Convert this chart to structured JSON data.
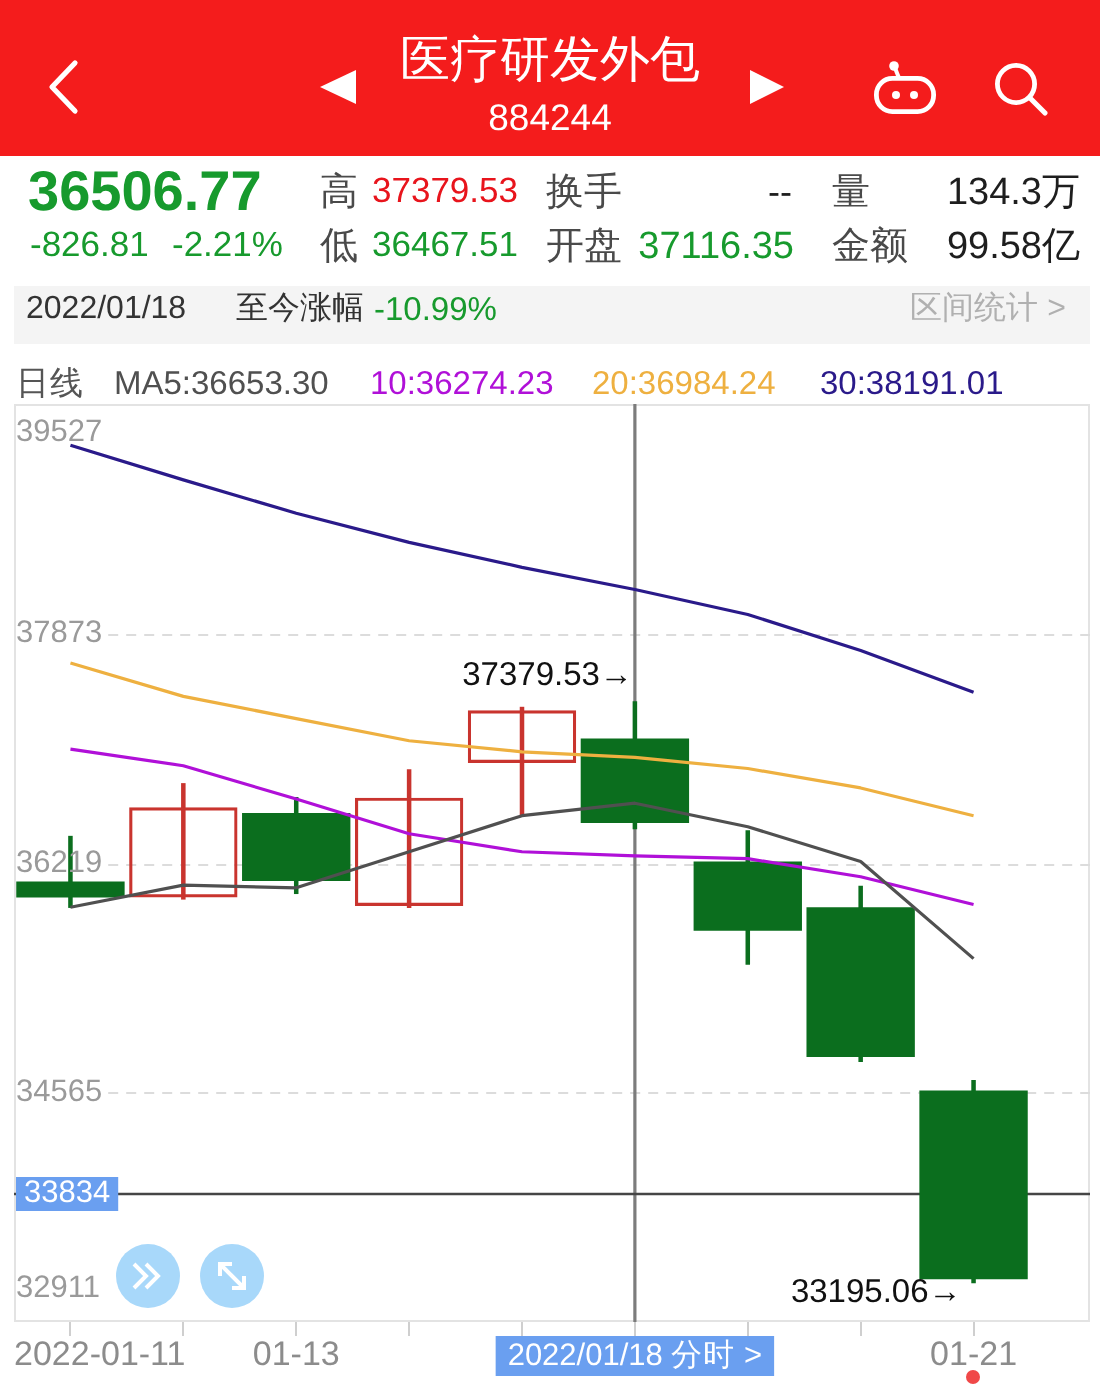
{
  "chart_data": {
    "type": "candlestick",
    "title": "医疗研发外包",
    "subtitle": "884244",
    "categories": [
      "2022-01-11",
      null,
      "01-13",
      null,
      null,
      "2022/01/18 分时 >",
      null,
      null,
      "01-21"
    ],
    "ohlc": [
      [
        36085,
        36410,
        35900,
        35970
      ],
      [
        35970,
        36790,
        35960,
        36620
      ],
      [
        36580,
        36690,
        36000,
        36090
      ],
      [
        35910,
        36890,
        35900,
        36690
      ],
      [
        36940,
        37340,
        36560,
        37320
      ],
      [
        37116.35,
        37379.53,
        36467.51,
        36506.77
      ],
      [
        36230,
        36450,
        35490,
        35730
      ],
      [
        35900,
        36050,
        34790,
        34820
      ],
      [
        34580,
        34650,
        33195.06,
        33220
      ]
    ],
    "colors": [
      "#0b6e1e",
      "#c9342e",
      "#0b6e1e",
      "#c9342e",
      "#c9342e",
      "#0b6e1e",
      "#0b6e1e",
      "#0b6e1e",
      "#0b6e1e"
    ],
    "series": [
      {
        "name": "MA5:36653.30",
        "type": "line",
        "color": "#505050",
        "values": [
          35900,
          36060,
          36040,
          36300,
          36560,
          36650,
          36480,
          36230,
          35530
        ]
      },
      {
        "name": "10:36274.23",
        "type": "line",
        "color": "#b010d8",
        "values": [
          37040,
          36920,
          36680,
          36430,
          36300,
          36270,
          36250,
          36120,
          35920
        ]
      },
      {
        "name": "20:36984.24",
        "type": "line",
        "color": "#eeb040",
        "values": [
          37660,
          37420,
          37260,
          37100,
          37020,
          36980,
          36900,
          36760,
          36560
        ]
      },
      {
        "name": "30:38191.01",
        "type": "line",
        "color": "#2a1a8a",
        "values": [
          39230,
          38980,
          38740,
          38530,
          38350,
          38190,
          38010,
          37750,
          37450
        ]
      }
    ],
    "ylim": [
      32911,
      39527
    ],
    "yticks": [
      39527,
      37873,
      36219,
      34565,
      32911
    ],
    "grid": "y",
    "legend": "top",
    "legend_title": "日线",
    "marker": "none",
    "ref_lines": [
      {
        "axis": "x",
        "value": "2022/01/18 分时 >",
        "color": "#7c7c7c"
      },
      {
        "axis": "y",
        "value": 33834,
        "label": "33834",
        "color": "#454545"
      }
    ],
    "annotations": [
      "36506.77",
      "-826.81",
      "-2.21%",
      "高",
      "37379.53",
      "低",
      "36467.51",
      "换手",
      "--",
      "开盘",
      "37116.35",
      "量",
      "134.3万",
      "金额",
      "99.58亿",
      "2022/01/18",
      "至今涨幅",
      "-10.99%",
      "区间统计 >",
      {
        "text": "37379.53→",
        "x": "2022/01/18 分时 >",
        "y": 37379.53
      },
      {
        "text": "33195.06→",
        "x": "01-21",
        "y": 33195.06
      }
    ]
  }
}
